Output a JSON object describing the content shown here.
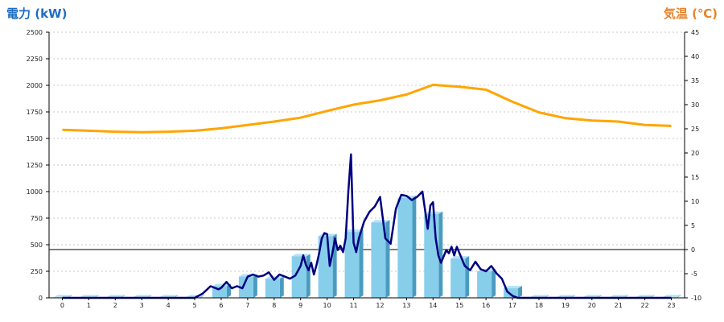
{
  "chart_data": {
    "type": "bar+line",
    "x_categories": [
      "0",
      "1",
      "2",
      "3",
      "4",
      "5",
      "6",
      "7",
      "8",
      "9",
      "10",
      "11",
      "12",
      "13",
      "14",
      "15",
      "16",
      "17",
      "18",
      "19",
      "20",
      "21",
      "22",
      "23"
    ],
    "left_axis": {
      "label": "電力 (kW)",
      "ylim": [
        0,
        2500
      ],
      "ticks": [
        "0",
        "250",
        "500",
        "750",
        "1000",
        "1250",
        "1500",
        "1750",
        "2000",
        "2250",
        "2500"
      ]
    },
    "right_axis": {
      "label": "気温 (℃)",
      "ylim": [
        -10,
        45
      ],
      "ticks": [
        "-10",
        "-5",
        "0",
        "5",
        "10",
        "15",
        "20",
        "25",
        "30",
        "35",
        "40",
        "45"
      ]
    },
    "bar_series": {
      "name": "",
      "axis": "left",
      "values": [
        5,
        5,
        5,
        5,
        5,
        5,
        110,
        200,
        180,
        390,
        580,
        620,
        710,
        940,
        790,
        370,
        250,
        90,
        5,
        5,
        5,
        5,
        5,
        5
      ]
    },
    "temperature_series": {
      "name": "",
      "axis": "right",
      "x": [
        0,
        1,
        2,
        3,
        4,
        5,
        6,
        7,
        8,
        9,
        10,
        11,
        12,
        13,
        14,
        15,
        16,
        17,
        18,
        19,
        20,
        21,
        22,
        23
      ],
      "values": [
        24.8,
        24.6,
        24.4,
        24.3,
        24.4,
        24.6,
        25.1,
        25.8,
        26.5,
        27.3,
        28.7,
        30.0,
        30.9,
        32.1,
        34.1,
        33.7,
        33.1,
        30.6,
        28.4,
        27.2,
        26.7,
        26.5,
        25.8,
        25.6
      ]
    },
    "power_series": {
      "name": "",
      "axis": "left",
      "x": [
        0,
        1,
        2,
        3,
        4,
        5,
        5.3,
        5.6,
        5.9,
        6.0,
        6.2,
        6.4,
        6.6,
        6.8,
        7.0,
        7.2,
        7.4,
        7.6,
        7.8,
        8.0,
        8.2,
        8.4,
        8.6,
        8.8,
        9.0,
        9.1,
        9.2,
        9.3,
        9.4,
        9.5,
        9.6,
        9.7,
        9.8,
        9.9,
        10.0,
        10.1,
        10.2,
        10.3,
        10.4,
        10.5,
        10.6,
        10.7,
        10.8,
        10.9,
        11.0,
        11.1,
        11.2,
        11.4,
        11.6,
        11.8,
        12.0,
        12.2,
        12.4,
        12.6,
        12.8,
        13.0,
        13.2,
        13.4,
        13.6,
        13.8,
        13.9,
        14.0,
        14.1,
        14.2,
        14.3,
        14.5,
        14.6,
        14.7,
        14.8,
        14.9,
        15.0,
        15.2,
        15.4,
        15.6,
        15.8,
        16.0,
        16.2,
        16.4,
        16.6,
        16.8,
        17.0,
        17.2,
        17.4,
        18,
        19,
        20,
        21,
        22,
        23
      ],
      "values": [
        0,
        0,
        0,
        0,
        0,
        0,
        40,
        110,
        80,
        95,
        150,
        90,
        110,
        90,
        200,
        220,
        200,
        210,
        240,
        170,
        220,
        200,
        180,
        210,
        300,
        400,
        310,
        260,
        330,
        220,
        310,
        420,
        560,
        610,
        600,
        300,
        420,
        560,
        450,
        490,
        430,
        560,
        1000,
        1350,
        520,
        430,
        560,
        720,
        810,
        860,
        950,
        560,
        510,
        840,
        970,
        960,
        920,
        950,
        1000,
        650,
        870,
        900,
        560,
        400,
        330,
        450,
        420,
        480,
        400,
        480,
        420,
        300,
        260,
        340,
        270,
        250,
        300,
        230,
        180,
        60,
        20,
        0,
        0,
        0,
        0,
        0,
        0,
        0,
        0
      ]
    },
    "colors": {
      "bar_fill": "#87ceeb",
      "bar_side": "#4a9bc0",
      "bar_top": "#b5e2f5",
      "power_line": "#000080",
      "temp_line": "#ffa500",
      "left_title": "#1f6ec0",
      "right_title": "#e8822a",
      "reference_line": "#000000"
    },
    "grid": true,
    "reference_value_right_axis": 0
  }
}
